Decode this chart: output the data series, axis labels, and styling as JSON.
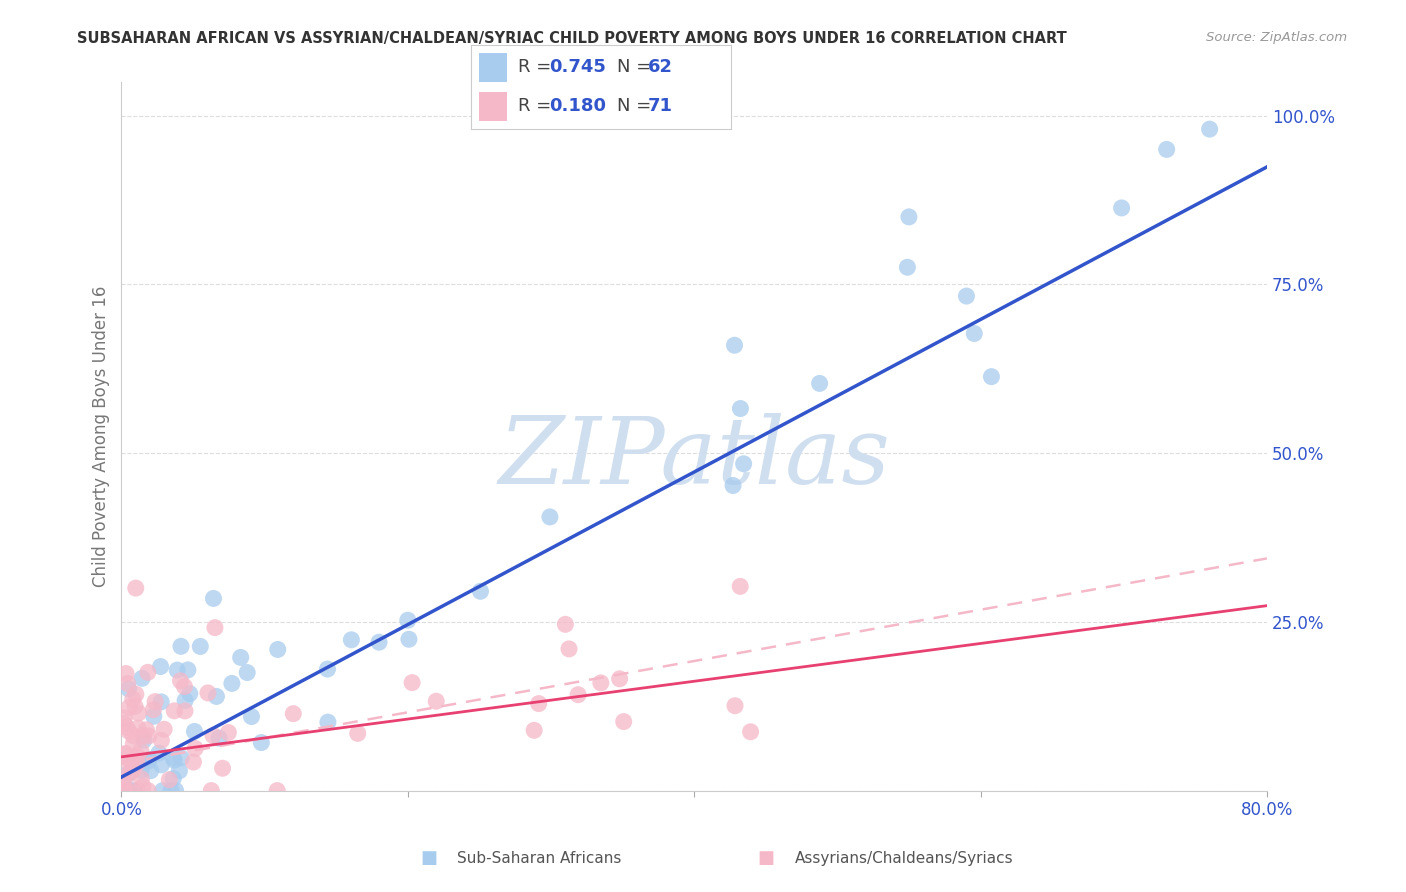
{
  "title": "SUBSAHARAN AFRICAN VS ASSYRIAN/CHALDEAN/SYRIAC CHILD POVERTY AMONG BOYS UNDER 16 CORRELATION CHART",
  "source": "Source: ZipAtlas.com",
  "ylabel": "Child Poverty Among Boys Under 16",
  "xmin": 0.0,
  "xmax": 0.8,
  "ymin": 0.0,
  "ymax": 1.05,
  "blue_color": "#a8ccee",
  "pink_color": "#f5b8c8",
  "blue_line_color": "#3355cc",
  "pink_line_color": "#e84070",
  "pink_dash_color": "#f5b8c8",
  "R_blue": 0.745,
  "N_blue": 62,
  "R_pink": 0.18,
  "N_pink": 71,
  "legend_label_blue": "Sub-Saharan Africans",
  "legend_label_pink": "Assyrians/Chaldeans/Syriacs",
  "legend_text_color": "#3355cc",
  "background_color": "#ffffff",
  "grid_color": "#dddddd",
  "title_color": "#333333",
  "label_color": "#777777",
  "tick_color": "#3355cc",
  "watermark_text": "ZIPatlas",
  "watermark_color": "#d0dff0"
}
